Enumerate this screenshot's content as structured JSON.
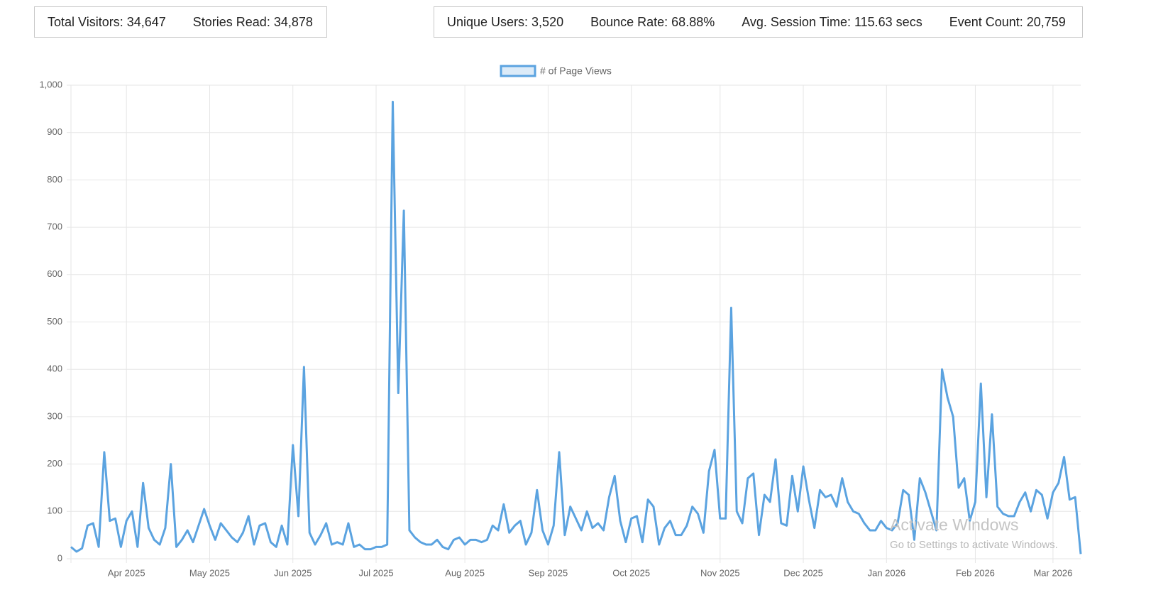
{
  "stats_left": [
    "Total Visitors: 34,647",
    "Stories Read: 34,878"
  ],
  "stats_right": [
    "Unique Users: 3,520",
    "Bounce Rate: 68.88%",
    "Avg. Session Time: 115.63 secs",
    "Event Count: 20,759"
  ],
  "watermark": {
    "title": "Activate Windows",
    "subtitle": "Go to Settings to activate Windows."
  },
  "chart_data": {
    "type": "line",
    "categories": [
      null,
      null,
      null,
      null,
      null,
      null,
      null,
      null,
      null,
      null,
      "Apr 2025",
      null,
      null,
      null,
      null,
      null,
      null,
      null,
      null,
      null,
      null,
      null,
      null,
      null,
      null,
      "May 2025",
      null,
      null,
      null,
      null,
      null,
      null,
      null,
      null,
      null,
      null,
      null,
      null,
      null,
      null,
      "Jun 2025",
      null,
      null,
      null,
      null,
      null,
      null,
      null,
      null,
      null,
      null,
      null,
      null,
      null,
      null,
      "Jul 2025",
      null,
      null,
      null,
      null,
      null,
      null,
      null,
      null,
      null,
      null,
      null,
      null,
      null,
      null,
      null,
      "Aug 2025",
      null,
      null,
      null,
      null,
      null,
      null,
      null,
      null,
      null,
      null,
      null,
      null,
      null,
      null,
      "Sep 2025",
      null,
      null,
      null,
      null,
      null,
      null,
      null,
      null,
      null,
      null,
      null,
      null,
      null,
      null,
      "Oct 2025",
      null,
      null,
      null,
      null,
      null,
      null,
      null,
      null,
      null,
      null,
      null,
      null,
      null,
      null,
      null,
      "Nov 2025",
      null,
      null,
      null,
      null,
      null,
      null,
      null,
      null,
      null,
      null,
      null,
      null,
      null,
      null,
      "Dec 2025",
      null,
      null,
      null,
      null,
      null,
      null,
      null,
      null,
      null,
      null,
      null,
      null,
      null,
      null,
      "Jan 2026",
      null,
      null,
      null,
      null,
      null,
      null,
      null,
      null,
      null,
      null,
      null,
      null,
      null,
      null,
      null,
      "Feb 2026",
      null,
      null,
      null,
      null,
      null,
      null,
      null,
      null,
      null,
      null,
      null,
      null,
      null,
      "Mar 2026",
      null,
      null,
      null,
      null,
      null
    ],
    "series": [
      {
        "name": "# of Page Views",
        "color": "#5ba3e0",
        "values": [
          25,
          15,
          22,
          70,
          75,
          25,
          225,
          80,
          85,
          25,
          80,
          100,
          25,
          160,
          65,
          40,
          30,
          65,
          200,
          25,
          40,
          60,
          35,
          70,
          105,
          70,
          40,
          75,
          60,
          45,
          35,
          55,
          90,
          30,
          70,
          75,
          35,
          25,
          70,
          30,
          240,
          90,
          405,
          55,
          30,
          50,
          75,
          30,
          35,
          30,
          75,
          25,
          30,
          20,
          20,
          25,
          25,
          30,
          965,
          350,
          735,
          60,
          45,
          35,
          30,
          30,
          40,
          25,
          20,
          40,
          45,
          30,
          40,
          40,
          35,
          40,
          70,
          60,
          115,
          55,
          70,
          80,
          30,
          55,
          145,
          60,
          30,
          70,
          225,
          50,
          110,
          85,
          60,
          100,
          65,
          75,
          60,
          130,
          175,
          80,
          35,
          85,
          90,
          35,
          125,
          110,
          30,
          65,
          80,
          50,
          50,
          70,
          110,
          95,
          55,
          185,
          230,
          85,
          85,
          530,
          100,
          75,
          170,
          180,
          50,
          135,
          120,
          210,
          75,
          70,
          175,
          100,
          195,
          125,
          65,
          145,
          130,
          135,
          110,
          170,
          120,
          100,
          95,
          75,
          60,
          60,
          80,
          65,
          60,
          75,
          145,
          135,
          40,
          170,
          140,
          100,
          60,
          400,
          340,
          300,
          150,
          170,
          80,
          120,
          370,
          130,
          305,
          110,
          95,
          90,
          90,
          120,
          140,
          100,
          145,
          135,
          85,
          140,
          160,
          215,
          125,
          130,
          10
        ]
      }
    ],
    "ylim": [
      0,
      1000
    ],
    "yticks": [
      0,
      100,
      200,
      300,
      400,
      500,
      600,
      700,
      800,
      900,
      {
        "value": 1000,
        "label": "1,000"
      }
    ],
    "grid": true,
    "legend": "top"
  }
}
